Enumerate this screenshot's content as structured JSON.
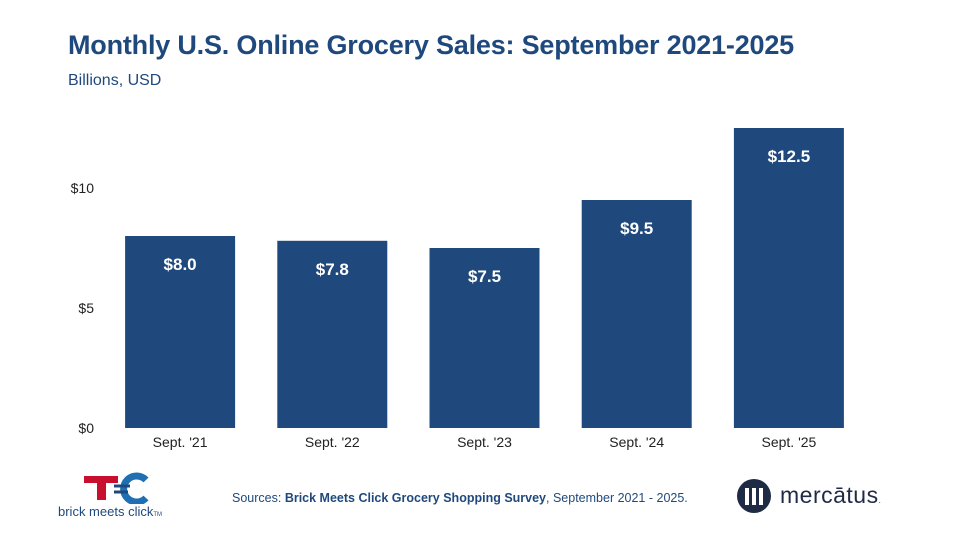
{
  "header": {
    "title": "Monthly U.S. Online Grocery Sales: September 2021-2025",
    "subtitle": "Billions, USD"
  },
  "chart_data": {
    "type": "bar",
    "title": "Monthly U.S. Online Grocery Sales: September 2021-2025",
    "subtitle": "Billions, USD",
    "categories": [
      "Sept. '21",
      "Sept. '22",
      "Sept. '23",
      "Sept. '24",
      "Sept. '25"
    ],
    "values": [
      8.0,
      7.8,
      7.5,
      9.5,
      12.5
    ],
    "value_labels": [
      "$8.0",
      "$7.8",
      "$7.5",
      "$9.5",
      "$12.5"
    ],
    "y_ticks": [
      0,
      5,
      10
    ],
    "y_tick_labels": [
      "$0",
      "$5",
      "$10"
    ],
    "ylim": [
      0,
      12.5
    ],
    "xlabel": "",
    "ylabel": "",
    "grid": false,
    "bar_color": "#1f497d"
  },
  "footer": {
    "source_prefix": "Sources: ",
    "source_name": "Brick Meets Click Grocery Shopping Survey",
    "source_suffix": ", September 2021 - 2025."
  },
  "logos": {
    "left": {
      "text": "brick meets click",
      "tm": "TM",
      "icon": "bmc-logo-icon"
    },
    "right": {
      "text": "mercātus",
      "tm": ".",
      "icon": "mercatus-logo-icon"
    }
  }
}
